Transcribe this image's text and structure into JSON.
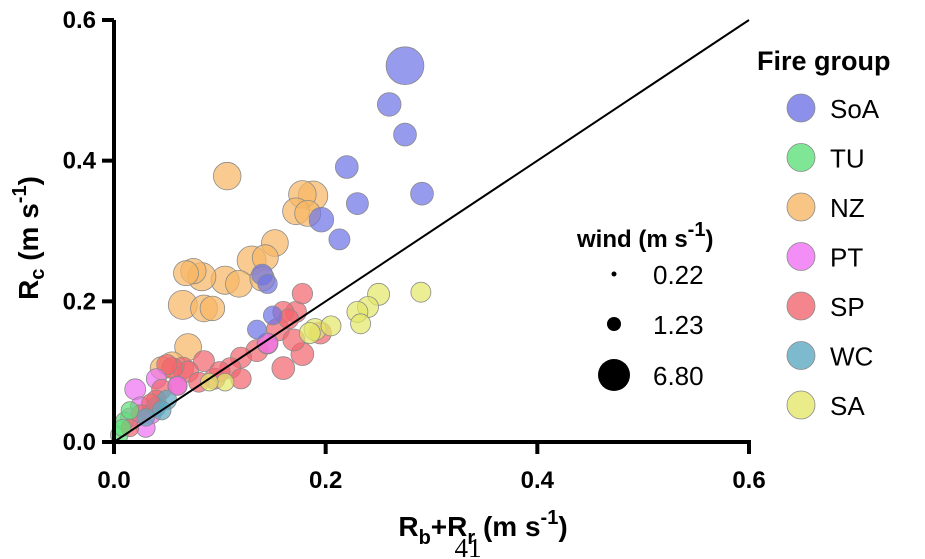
{
  "page_number": "41",
  "chart_data": {
    "type": "scatter",
    "xlabel": {
      "main": "R",
      "sub1": "b",
      "plus": "+R",
      "sub2": "r",
      "unit": " (m s",
      "sup": "-1",
      "close": ")"
    },
    "ylabel": {
      "main": "R",
      "sub": "c",
      "unit": " (m s",
      "sup": "-1",
      "close": ")"
    },
    "xlim": [
      0,
      0.6
    ],
    "ylim": [
      0,
      0.6
    ],
    "x_ticks": [
      0.0,
      0.2,
      0.4,
      0.6
    ],
    "x_tick_labels": [
      "0.0",
      "0.2",
      "0.4",
      "0.6"
    ],
    "y_ticks": [
      0.0,
      0.2,
      0.4,
      0.6
    ],
    "y_tick_labels": [
      "0.0",
      "0.2",
      "0.4",
      "0.6"
    ],
    "reference_line": {
      "type": "1:1",
      "from": [
        0,
        0
      ],
      "to": [
        0.6,
        0.6
      ]
    },
    "legend_title": "Fire group",
    "size_legend_title": {
      "main": "wind (m s",
      "sup": "-1",
      "close": ")"
    },
    "size_legend": [
      {
        "label": "0.22",
        "wind": 0.22
      },
      {
        "label": "1.23",
        "wind": 1.23
      },
      {
        "label": "6.80",
        "wind": 6.8
      }
    ],
    "series": [
      {
        "name": "SoA",
        "color": "#6f74e6",
        "points": [
          [
            0.275,
            0.535,
            6.8
          ],
          [
            0.26,
            0.48,
            2.2
          ],
          [
            0.275,
            0.437,
            2.0
          ],
          [
            0.291,
            0.353,
            2.0
          ],
          [
            0.22,
            0.391,
            2.0
          ],
          [
            0.23,
            0.339,
            1.8
          ],
          [
            0.213,
            0.288,
            1.6
          ],
          [
            0.196,
            0.316,
            2.4
          ],
          [
            0.14,
            0.238,
            1.6
          ],
          [
            0.135,
            0.16,
            1.2
          ],
          [
            0.15,
            0.18,
            1.2
          ],
          [
            0.145,
            0.225,
            1.3
          ]
        ]
      },
      {
        "name": "TU",
        "color": "#5fe07a",
        "points": [
          [
            0.005,
            0.01,
            1.0
          ],
          [
            0.01,
            0.03,
            1.0
          ],
          [
            0.015,
            0.045,
            1.0
          ],
          [
            0.008,
            0.02,
            0.9
          ]
        ]
      },
      {
        "name": "NZ",
        "color": "#f6b765",
        "points": [
          [
            0.107,
            0.378,
            3.2
          ],
          [
            0.178,
            0.352,
            3.2
          ],
          [
            0.188,
            0.35,
            3.8
          ],
          [
            0.172,
            0.328,
            3.0
          ],
          [
            0.183,
            0.325,
            2.8
          ],
          [
            0.152,
            0.283,
            3.0
          ],
          [
            0.13,
            0.258,
            3.6
          ],
          [
            0.143,
            0.262,
            2.8
          ],
          [
            0.14,
            0.232,
            2.4
          ],
          [
            0.105,
            0.23,
            3.4
          ],
          [
            0.118,
            0.225,
            3.0
          ],
          [
            0.068,
            0.24,
            2.5
          ],
          [
            0.075,
            0.243,
            2.6
          ],
          [
            0.083,
            0.235,
            3.4
          ],
          [
            0.065,
            0.195,
            3.6
          ],
          [
            0.085,
            0.19,
            3.0
          ],
          [
            0.093,
            0.19,
            2.4
          ],
          [
            0.07,
            0.135,
            3.0
          ],
          [
            0.055,
            0.11,
            2.6
          ],
          [
            0.045,
            0.105,
            2.0
          ]
        ]
      },
      {
        "name": "PT",
        "color": "#ef72f2",
        "points": [
          [
            0.02,
            0.075,
            1.6
          ],
          [
            0.025,
            0.05,
            1.4
          ],
          [
            0.035,
            0.04,
            1.4
          ],
          [
            0.015,
            0.035,
            1.2
          ],
          [
            0.04,
            0.09,
            1.4
          ],
          [
            0.06,
            0.08,
            1.2
          ],
          [
            0.03,
            0.02,
            1.2
          ],
          [
            0.145,
            0.14,
            1.4
          ]
        ]
      },
      {
        "name": "SP",
        "color": "#f3676f",
        "points": [
          [
            0.178,
            0.211,
            1.5
          ],
          [
            0.172,
            0.185,
            1.6
          ],
          [
            0.16,
            0.185,
            1.6
          ],
          [
            0.165,
            0.175,
            1.4
          ],
          [
            0.155,
            0.16,
            2.0
          ],
          [
            0.145,
            0.14,
            1.6
          ],
          [
            0.17,
            0.145,
            1.8
          ],
          [
            0.195,
            0.155,
            1.8
          ],
          [
            0.178,
            0.125,
            2.0
          ],
          [
            0.135,
            0.13,
            1.8
          ],
          [
            0.12,
            0.12,
            1.6
          ],
          [
            0.16,
            0.105,
            2.0
          ],
          [
            0.11,
            0.105,
            1.6
          ],
          [
            0.1,
            0.1,
            1.5
          ],
          [
            0.085,
            0.115,
            1.6
          ],
          [
            0.065,
            0.105,
            1.8
          ],
          [
            0.07,
            0.1,
            1.6
          ],
          [
            0.055,
            0.105,
            1.6
          ],
          [
            0.05,
            0.11,
            1.5
          ],
          [
            0.095,
            0.09,
            1.6
          ],
          [
            0.08,
            0.085,
            1.4
          ],
          [
            0.06,
            0.08,
            1.3
          ],
          [
            0.045,
            0.075,
            1.4
          ],
          [
            0.04,
            0.06,
            1.3
          ],
          [
            0.035,
            0.055,
            1.2
          ],
          [
            0.025,
            0.04,
            1.1
          ],
          [
            0.015,
            0.02,
            1.0
          ],
          [
            0.12,
            0.09,
            1.5
          ]
        ]
      },
      {
        "name": "WC",
        "color": "#5ea9c2",
        "points": [
          [
            0.04,
            0.05,
            1.3
          ],
          [
            0.05,
            0.06,
            1.3
          ],
          [
            0.045,
            0.045,
            1.2
          ],
          [
            0.03,
            0.035,
            1.0
          ]
        ]
      },
      {
        "name": "SA",
        "color": "#e3e76a",
        "points": [
          [
            0.29,
            0.213,
            1.4
          ],
          [
            0.25,
            0.21,
            1.8
          ],
          [
            0.24,
            0.192,
            1.6
          ],
          [
            0.23,
            0.185,
            1.6
          ],
          [
            0.233,
            0.168,
            1.4
          ],
          [
            0.205,
            0.165,
            1.4
          ],
          [
            0.19,
            0.16,
            1.8
          ],
          [
            0.185,
            0.155,
            1.6
          ],
          [
            0.105,
            0.085,
            1.0
          ],
          [
            0.09,
            0.085,
            1.0
          ]
        ]
      }
    ]
  }
}
